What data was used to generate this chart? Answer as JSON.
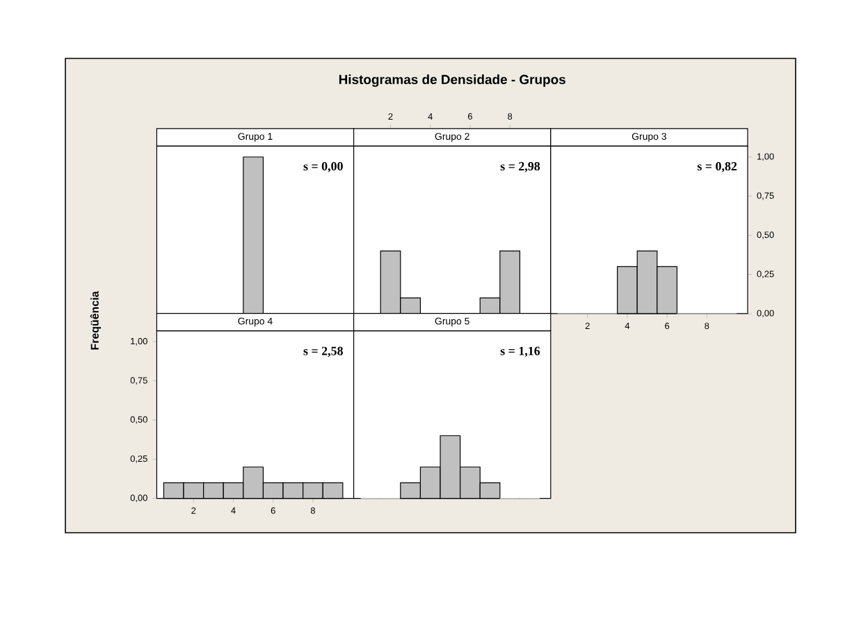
{
  "chart_data": [
    {
      "type": "histogram",
      "subtitle": "Grupo 1",
      "bins": [
        0.5,
        1.5,
        2.5,
        3.5,
        4.5,
        5.5,
        6.5,
        7.5,
        8.5,
        9.5
      ],
      "values": [
        0,
        0,
        0,
        0,
        1,
        0,
        0,
        0,
        0
      ],
      "color": "#c0c0c0",
      "xlim": [
        0.15,
        10.05
      ],
      "ylim": [
        0,
        1.07
      ],
      "tick_labels": false,
      "annotations": [
        "s = 0,00"
      ]
    },
    {
      "type": "histogram",
      "title": "Histogramas de Densidade - Grupos",
      "subtitle": "Grupo 2",
      "bins": [
        0.5,
        1.5,
        2.5,
        3.5,
        4.5,
        5.5,
        6.5,
        7.5,
        8.5,
        9.5
      ],
      "values": [
        0,
        0.4,
        0.1,
        0,
        0,
        0,
        0.1,
        0.4,
        0
      ],
      "color": "#c0c0c0",
      "xlim": [
        0.15,
        10.05
      ],
      "ylim": [
        0,
        1.07
      ],
      "x2lim": [
        0.15,
        10.05
      ],
      "x2ticks": [
        2,
        4,
        6,
        8
      ],
      "tick_labels": "x",
      "annotations": [
        "s = 2,98"
      ]
    },
    {
      "type": "histogram",
      "subtitle": "Grupo 3",
      "bins": [
        0.5,
        1.5,
        2.5,
        3.5,
        4.5,
        5.5,
        6.5,
        7.5,
        8.5,
        9.5
      ],
      "series": [
        {
          "values": [
            0,
            0,
            0,
            0.3,
            0.4,
            0.3,
            0,
            0,
            0
          ],
          "color": "#c0c0c0",
          "axis": "y2"
        }
      ],
      "xlim": [
        0.15,
        10.05
      ],
      "xticks": [
        2,
        4,
        6,
        8
      ],
      "y2lim": [
        0,
        1.07
      ],
      "y2ticks": [
        {
          "value": 0,
          "label": "0,00"
        },
        {
          "value": 0.25,
          "label": "0,25"
        },
        {
          "value": 0.5,
          "label": "0,50"
        },
        {
          "value": 0.75,
          "label": "0,75"
        },
        {
          "value": 1,
          "label": "1,00"
        }
      ],
      "annotations": [
        "s = 0,82"
      ]
    },
    {
      "type": "histogram",
      "subtitle": "Grupo 4",
      "ylabel": "Freqüência",
      "bins": [
        0.5,
        1.5,
        2.5,
        3.5,
        4.5,
        5.5,
        6.5,
        7.5,
        8.5,
        9.5
      ],
      "values": [
        0.1,
        0.1,
        0.1,
        0.1,
        0.2,
        0.1,
        0.1,
        0.1,
        0.1
      ],
      "color": "#c0c0c0",
      "xlim": [
        0.15,
        10.05
      ],
      "xticks": [
        2,
        4,
        6,
        8
      ],
      "ylim": [
        0,
        1.07
      ],
      "yticks": [
        {
          "value": 0,
          "label": "0,00"
        },
        {
          "value": 0.25,
          "label": "0,25"
        },
        {
          "value": 0.5,
          "label": "0,50"
        },
        {
          "value": 0.75,
          "label": "0,75"
        },
        {
          "value": 1,
          "label": "1,00"
        }
      ],
      "annotations": [
        "s = 2,58"
      ]
    },
    {
      "type": "histogram",
      "subtitle": "Grupo 5",
      "bins": [
        0.5,
        1.5,
        2.5,
        3.5,
        4.5,
        5.5,
        6.5,
        7.5,
        8.5,
        9.5
      ],
      "values": [
        0,
        0,
        0.1,
        0.2,
        0.4,
        0.2,
        0.1,
        0,
        0
      ],
      "color": "#c0c0c0",
      "xlim": [
        0.15,
        10.05
      ],
      "ylim": [
        0,
        1.07
      ],
      "tick_labels": false,
      "annotations": [
        "s = 1,16"
      ]
    }
  ]
}
